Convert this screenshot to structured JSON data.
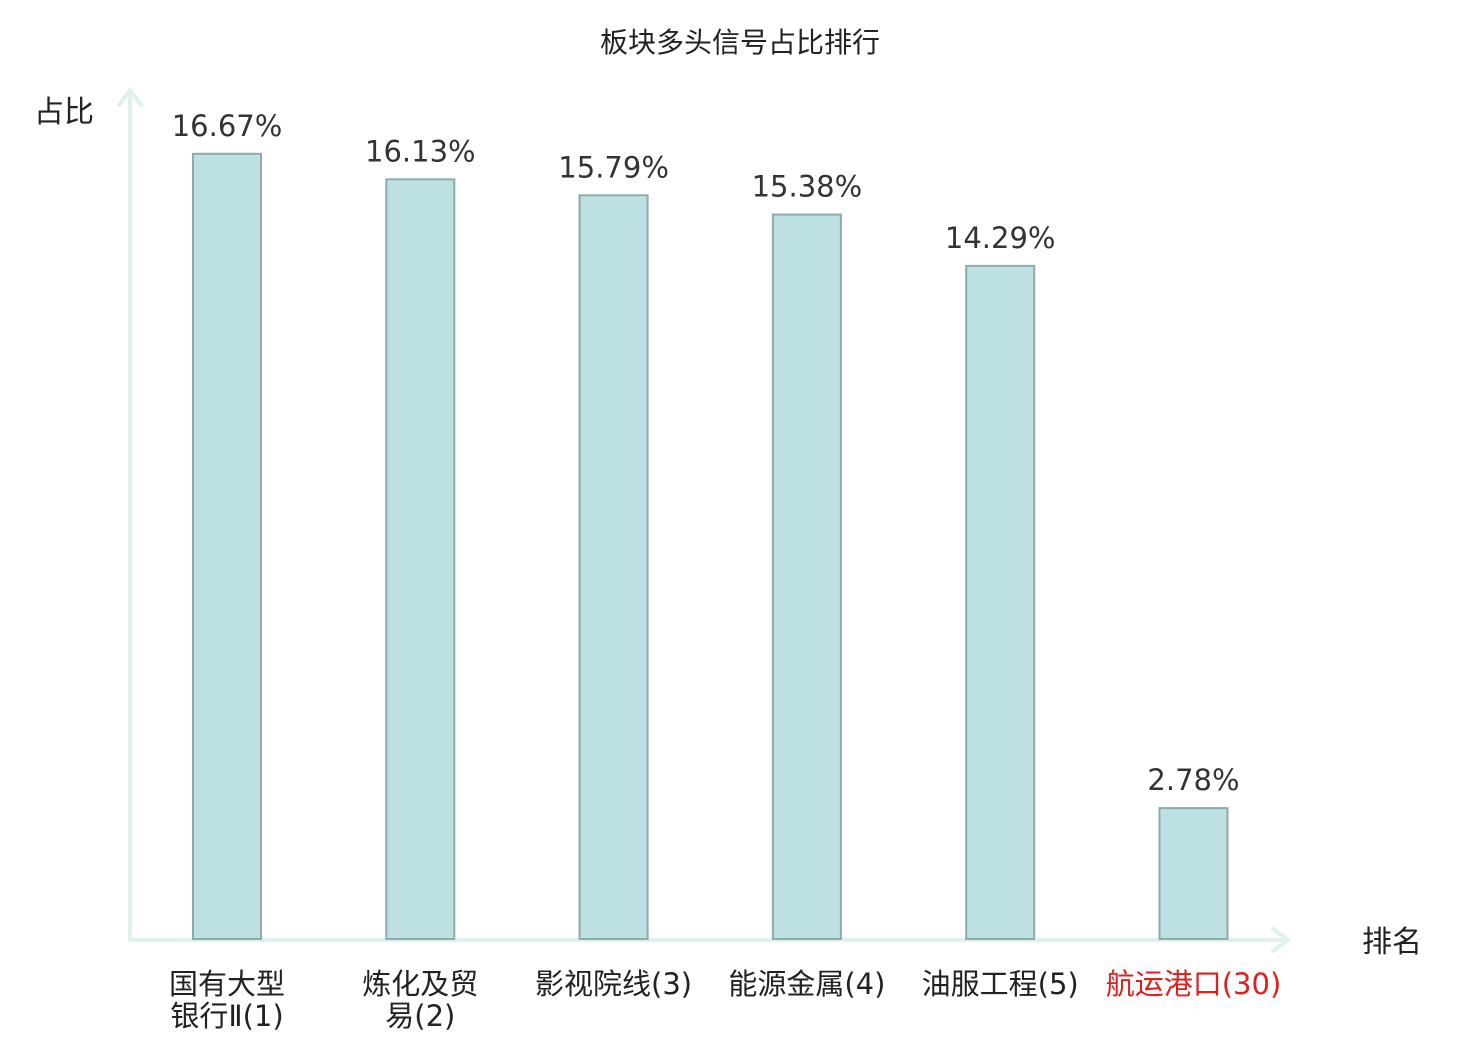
{
  "chart_data": {
    "type": "bar",
    "title": "板块多头信号占比排行",
    "ylabel": "占比",
    "xlabel": "排名",
    "ylim": [
      0,
      17.5
    ],
    "grid": false,
    "categories": [
      [
        "国有大型",
        "银行Ⅱ(1)"
      ],
      [
        "炼化及贸",
        "易(2)"
      ],
      [
        "影视院线(3)"
      ],
      [
        "能源金属(4)"
      ],
      [
        "油服工程(5)"
      ],
      [
        "航运港口(30)"
      ]
    ],
    "values": [
      16.67,
      16.13,
      15.79,
      15.38,
      14.29,
      2.78
    ],
    "value_labels": [
      "16.67%",
      "16.13%",
      "15.79%",
      "15.38%",
      "14.29%",
      "2.78%"
    ],
    "highlight_index": 5,
    "colors": {
      "bar_fill": "#bde0e3",
      "bar_stroke": "#8faaaa",
      "axis": "#dff0ee",
      "label": "#222222",
      "highlight_label": "#e0201c"
    }
  }
}
